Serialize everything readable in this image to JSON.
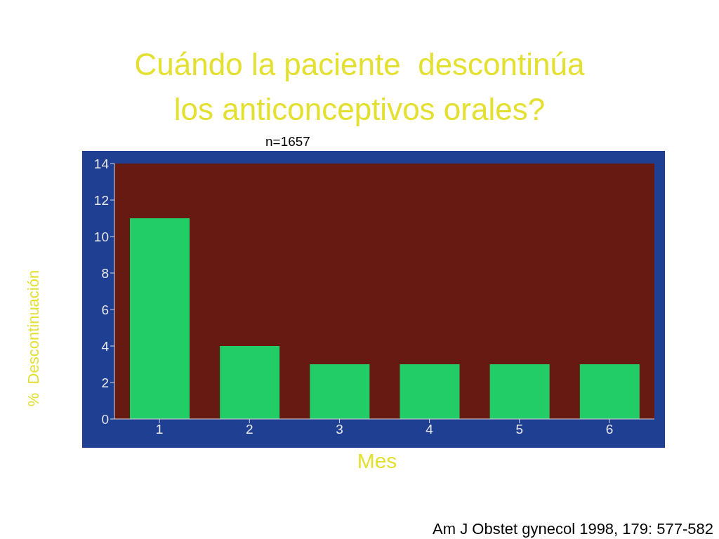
{
  "chart_data": {
    "type": "bar",
    "title": "Cuándo la paciente  descontinúa\nlos anticonceptivos orales?",
    "categories": [
      "1",
      "2",
      "3",
      "4",
      "5",
      "6"
    ],
    "values": [
      11,
      4,
      3,
      3,
      3,
      3
    ],
    "color": "#22cc66",
    "ylim": [
      0,
      14
    ],
    "yticks": [
      0,
      2,
      4,
      6,
      8,
      10,
      12,
      14
    ],
    "xlabel": "Mes",
    "ylabel": "%  Descontinuación",
    "annotations": [
      "n=1657",
      "Am J Obstet gynecol 1998, 179: 577-582"
    ]
  }
}
